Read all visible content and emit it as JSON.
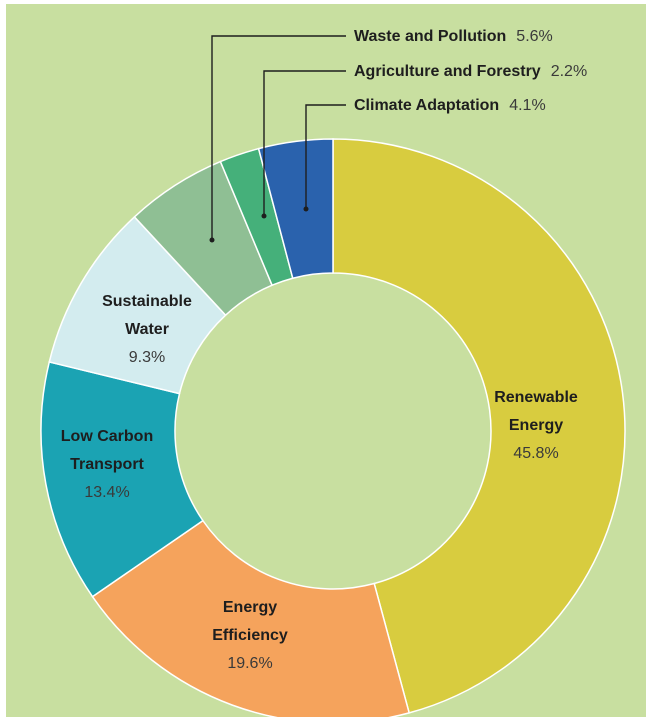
{
  "chart_data": {
    "type": "pie",
    "title": "",
    "legend": "none",
    "slices": [
      {
        "name": "Renewable Energy",
        "label_lines": [
          "Renewable",
          "Energy"
        ],
        "value": 45.8,
        "value_label": "45.8%",
        "color": "#d8cc3f"
      },
      {
        "name": "Energy Efficiency",
        "label_lines": [
          "Energy",
          "Efficiency"
        ],
        "value": 19.6,
        "value_label": "19.6%",
        "color": "#f5a35c"
      },
      {
        "name": "Low Carbon Transport",
        "label_lines": [
          "Low Carbon",
          "Transport"
        ],
        "value": 13.4,
        "value_label": "13.4%",
        "color": "#1ba3b3"
      },
      {
        "name": "Sustainable Water",
        "label_lines": [
          "Sustainable",
          "Water"
        ],
        "value": 9.3,
        "value_label": "9.3%",
        "color": "#d3ecef"
      },
      {
        "name": "Waste and Pollution",
        "label_lines": [
          "Waste and Pollution"
        ],
        "value": 5.6,
        "value_label": "5.6%",
        "color": "#8fbf94"
      },
      {
        "name": "Agriculture and Forestry",
        "label_lines": [
          "Agriculture and Forestry"
        ],
        "value": 2.2,
        "value_label": "2.2%",
        "color": "#45b07a"
      },
      {
        "name": "Climate Adaptation",
        "label_lines": [
          "Climate Adaptation"
        ],
        "value": 4.1,
        "value_label": "4.1%",
        "color": "#2a62ad"
      }
    ]
  },
  "colors": {
    "background": "#c8dfa0",
    "inner_hole": "#c8dfa0"
  }
}
